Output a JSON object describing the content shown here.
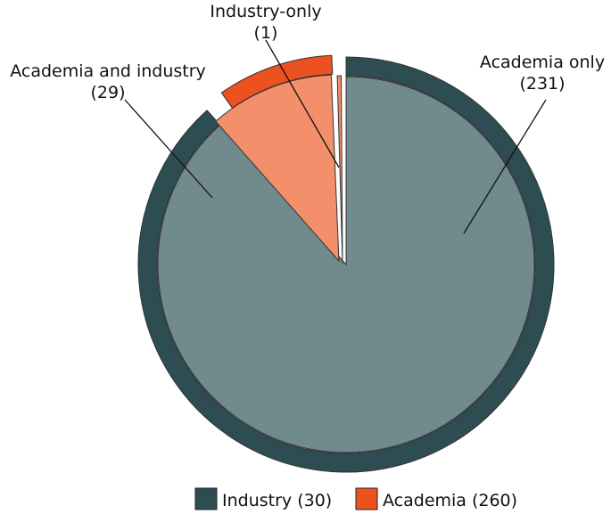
{
  "chart_data": {
    "type": "pie",
    "inner_ring": {
      "slices": [
        {
          "name": "Academia only",
          "value": 231,
          "color": "#718a8e"
        },
        {
          "name": "Academia and industry",
          "value": 29,
          "color": "#f38f6a"
        },
        {
          "name": "Industry-only",
          "value": 1,
          "color": "#f38f6a"
        }
      ]
    },
    "outer_ring": {
      "slices": [
        {
          "name": "Industry",
          "value": 30,
          "color": "#2d4d52"
        },
        {
          "name": "Academia",
          "value": 260,
          "color": "#ec521f"
        }
      ]
    },
    "labels": [
      {
        "line1": "Academia only",
        "line2": "(231)"
      },
      {
        "line1": "Academia and industry",
        "line2": "(29)"
      },
      {
        "line1": "Industry-only",
        "line2": "(1)"
      }
    ],
    "legend": {
      "position": "bottom",
      "items": [
        {
          "label": "Industry (30)",
          "color": "#2d4d52"
        },
        {
          "label": "Academia (260)",
          "color": "#ec521f"
        }
      ]
    }
  }
}
